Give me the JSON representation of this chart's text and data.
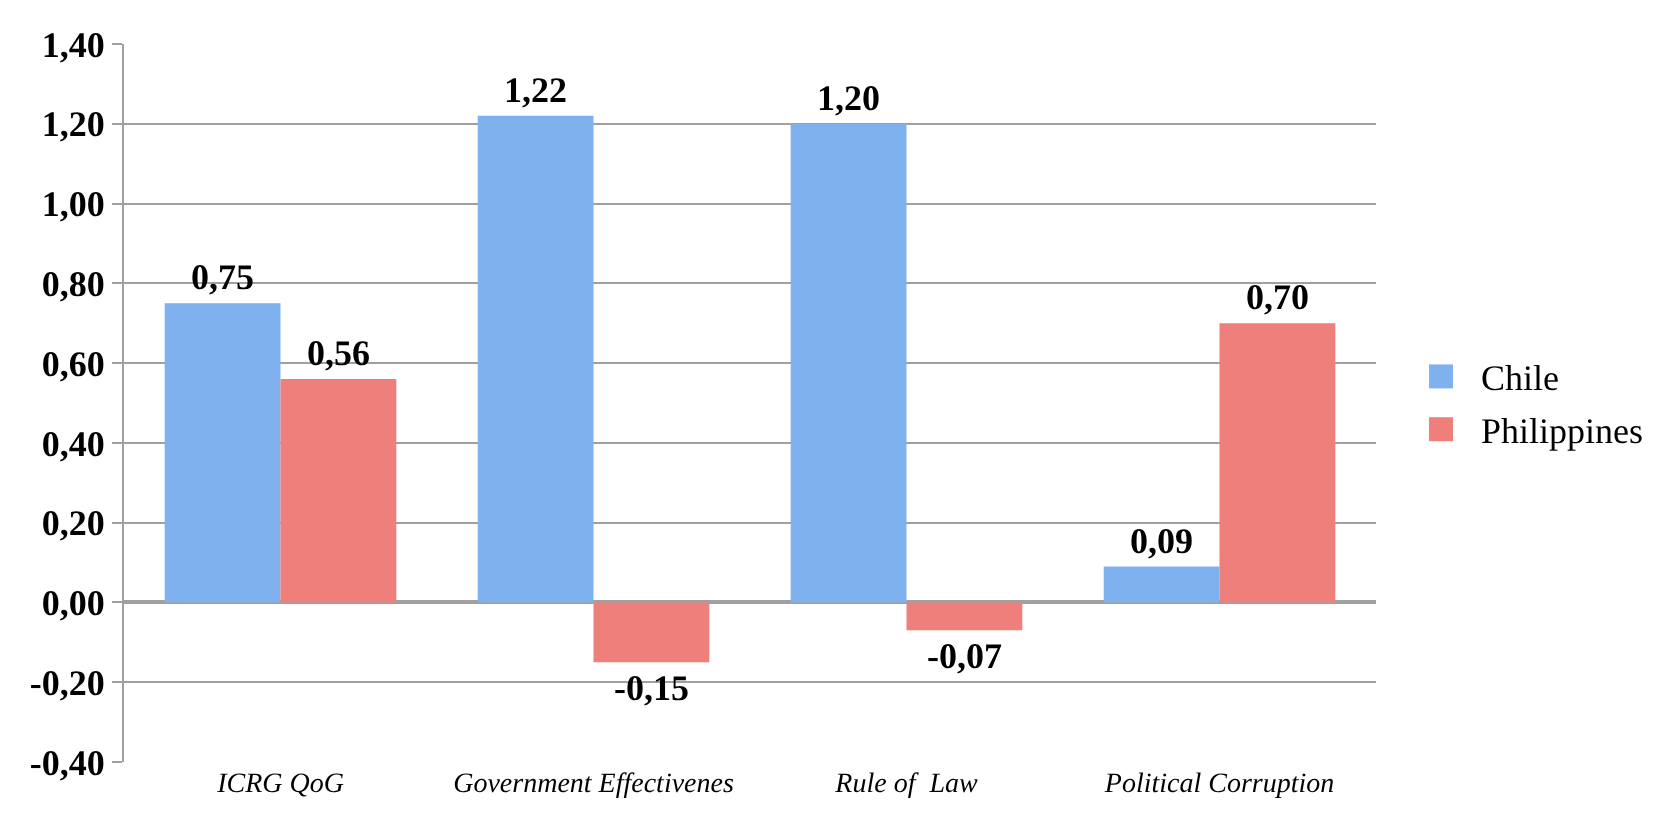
{
  "chart_data": {
    "type": "bar",
    "categories": [
      "ICRG QoG",
      "Government Effectivenes",
      "Rule of  Law",
      "Political Corruption"
    ],
    "series": [
      {
        "name": "Chile",
        "color": "#7fb1ee",
        "values": [
          0.75,
          1.22,
          1.2,
          0.09
        ],
        "value_labels": [
          "0,75",
          "1,22",
          "1,20",
          "0,09"
        ]
      },
      {
        "name": "Philippines",
        "color": "#ee7f7a",
        "values": [
          0.56,
          -0.15,
          -0.07,
          0.7
        ],
        "value_labels": [
          "0,56",
          "-0,15",
          "-0,07",
          "0,70"
        ]
      }
    ],
    "ylim": [
      -0.4,
      1.4
    ],
    "yticks": [
      {
        "value": -0.4,
        "label": "-0,40"
      },
      {
        "value": -0.2,
        "label": "-0,20"
      },
      {
        "value": 0,
        "label": "0,00"
      },
      {
        "value": 0.2,
        "label": "0,20"
      },
      {
        "value": 0.4,
        "label": "0,40"
      },
      {
        "value": 0.6,
        "label": "0,60"
      },
      {
        "value": 0.8,
        "label": "0,80"
      },
      {
        "value": 1.0,
        "label": "1,00"
      },
      {
        "value": 1.2,
        "label": "1,20"
      },
      {
        "value": 1.4,
        "label": "1,40"
      }
    ],
    "grid": "y",
    "legend": "right"
  }
}
